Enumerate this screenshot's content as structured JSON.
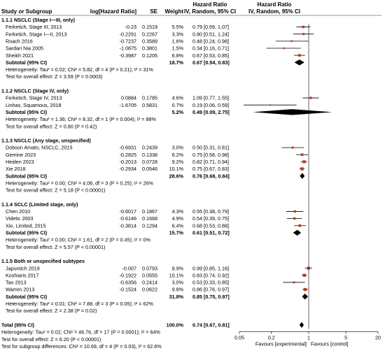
{
  "header": {
    "col_study": "Study or Subgroup",
    "col_loghr": "log[Hazard Ratio]",
    "col_se": "SE",
    "col_weight": "Weight",
    "col_hr1": "Hazard Ratio",
    "col_hr2": "IV, Random, 95% CI",
    "plot_hr1": "Hazard Ratio",
    "plot_hr2": "IV, Random, 95% CI"
  },
  "colors": {
    "header_rule": "#7a9cc6",
    "study_box": "#c0392b",
    "ci_line": "#000000",
    "diamond": "#000000",
    "text": "#000000"
  },
  "chart_data": {
    "type": "forest",
    "scale": "log",
    "xlim": [
      0.05,
      20
    ],
    "ticks": [
      {
        "value": 0.05,
        "label": "0.05"
      },
      {
        "value": 0.2,
        "label": "0.2"
      },
      {
        "value": 1,
        "label": "1"
      },
      {
        "value": 5,
        "label": "5"
      },
      {
        "value": 20,
        "label": "20"
      }
    ],
    "favours_left": "Favours [experimental]",
    "favours_right": "Favours [control]",
    "subgroups": [
      {
        "title": "1.1.1 NSCLC (Stage I—III, only)",
        "studies": [
          {
            "name": "Ferketich, Stage III, 2013",
            "loghr": "-0.23",
            "se": "0.1519",
            "weight": "5.5%",
            "ci_text": "0.79 [0.59, 1.07]",
            "hr": 0.79,
            "lo": 0.59,
            "hi": 1.07,
            "w": 5.5
          },
          {
            "name": "Ferketich, Stage I—II, 2013",
            "loghr": "-0.2291",
            "se": "0.2267",
            "weight": "3.3%",
            "ci_text": "0.80 [0.51, 1.24]",
            "hr": 0.8,
            "lo": 0.51,
            "hi": 1.24,
            "w": 3.3
          },
          {
            "name": "Roach 2016",
            "loghr": "-0.7237",
            "se": "0.3589",
            "weight": "1.6%",
            "ci_text": "0.48 [0.24, 0.98]",
            "hr": 0.48,
            "lo": 0.24,
            "hi": 0.98,
            "w": 1.6
          },
          {
            "name": "Sardari Nia 2005",
            "loghr": "-1.0875",
            "se": "0.3801",
            "weight": "1.5%",
            "ci_text": "0.34 [0.16, 0.71]",
            "hr": 0.34,
            "lo": 0.16,
            "hi": 0.71,
            "w": 1.5
          },
          {
            "name": "Sheikh 2021",
            "loghr": "-0.3987",
            "se": "0.1205",
            "weight": "6.8%",
            "ci_text": "0.67 [0.53, 0.85]",
            "hr": 0.67,
            "lo": 0.53,
            "hi": 0.85,
            "w": 6.8
          }
        ],
        "subtotal": {
          "label": "Subtotal (95% CI)",
          "weight": "18.7%",
          "ci_text": "0.67 [0.54, 0.83]",
          "hr": 0.67,
          "lo": 0.54,
          "hi": 0.83
        },
        "heterogeneity": "Heterogeneity: Tau² = 0.02; Chi² = 5.82, df = 4 (P = 0.21); I² = 31%",
        "overall_effect": "Test for overall effect: Z = 3.59 (P = 0.0003)"
      },
      {
        "title": "1.1.2 NSCLC (Stage IV, only)",
        "studies": [
          {
            "name": "Ferketich, Stage IV, 2013",
            "loghr": "0.0884",
            "se": "0.1785",
            "weight": "4.6%",
            "ci_text": "1.09 [0.77, 1.55]",
            "hr": 1.09,
            "lo": 0.77,
            "hi": 1.55,
            "w": 4.6
          },
          {
            "name": "Linhas, Squamous, 2018",
            "loghr": "-1.6705",
            "se": "0.5831",
            "weight": "0.7%",
            "ci_text": "0.19 [0.06, 0.59]",
            "hr": 0.19,
            "lo": 0.06,
            "hi": 0.59,
            "w": 0.7
          }
        ],
        "subtotal": {
          "label": "Subtotal (95% CI)",
          "weight": "5.2%",
          "ci_text": "0.49 [0.09, 2.75]",
          "hr": 0.49,
          "lo": 0.09,
          "hi": 2.75
        },
        "heterogeneity": "Heterogeneity: Tau² = 1.36; Chi² = 8.32, df = 1 (P = 0.004); I² = 88%",
        "overall_effect": "Test for overall effect: Z = 0.80 (P = 0.42)"
      },
      {
        "title": "1.1.3 NSCLC (Any stage, unspecified)",
        "studies": [
          {
            "name": "Dobson Amato, NSCLC, 2015",
            "loghr": "-0.6931",
            "se": "0.2439",
            "weight": "3.0%",
            "ci_text": "0.50 [0.31, 0.81]",
            "hr": 0.5,
            "lo": 0.31,
            "hi": 0.81,
            "w": 3.0
          },
          {
            "name": "Gemine 2023",
            "loghr": "-0.2825",
            "se": "0.1338",
            "weight": "6.2%",
            "ci_text": "0.75 [0.58, 0.98]",
            "hr": 0.75,
            "lo": 0.58,
            "hi": 0.98,
            "w": 6.2
          },
          {
            "name": "Heiden 2023",
            "loghr": "-0.2013",
            "se": "0.0728",
            "weight": "9.2%",
            "ci_text": "0.82 [0.71, 0.94]",
            "hr": 0.82,
            "lo": 0.71,
            "hi": 0.94,
            "w": 9.2
          },
          {
            "name": "Xie 2018",
            "loghr": "-0.2934",
            "se": "0.0546",
            "weight": "10.1%",
            "ci_text": "0.75 [0.67, 0.83]",
            "hr": 0.75,
            "lo": 0.67,
            "hi": 0.83,
            "w": 10.1
          }
        ],
        "subtotal": {
          "label": "Subtotal (95% CI)",
          "weight": "28.6%",
          "ci_text": "0.76 [0.68, 0.84]",
          "hr": 0.76,
          "lo": 0.68,
          "hi": 0.84
        },
        "heterogeneity": "Heterogeneity: Tau² = 0.00; Chi² = 4.08, df = 3 (P = 0.25); I² = 26%",
        "overall_effect": "Test for overall effect: Z = 5.18 (P < 0.00001)"
      },
      {
        "title": "1.1.4 SCLC (Limited stage, only)",
        "studies": [
          {
            "name": "Chen 2010",
            "loghr": "-0.6017",
            "se": "0.1867",
            "weight": "4.3%",
            "ci_text": "0.55 [0.38, 0.79]",
            "hr": 0.55,
            "lo": 0.38,
            "hi": 0.79,
            "w": 4.3
          },
          {
            "name": "Videtic 2003",
            "loghr": "-0.6146",
            "se": "0.1668",
            "weight": "4.9%",
            "ci_text": "0.54 [0.39, 0.75]",
            "hr": 0.54,
            "lo": 0.39,
            "hi": 0.75,
            "w": 4.9
          },
          {
            "name": "Xie, Limited, 2015",
            "loghr": "-0.3814",
            "se": "0.1294",
            "weight": "6.4%",
            "ci_text": "0.68 [0.53, 0.88]",
            "hr": 0.68,
            "lo": 0.53,
            "hi": 0.88,
            "w": 6.4
          }
        ],
        "subtotal": {
          "label": "Subtotal (95% CI)",
          "weight": "15.7%",
          "ci_text": "0.61 [0.51, 0.72]",
          "hr": 0.61,
          "lo": 0.51,
          "hi": 0.72
        },
        "heterogeneity": "Heterogeneity: Tau² = 0.00; Chi² = 1.61, df = 2 (P = 0.45); I² = 0%",
        "overall_effect": "Test for overall effect: Z = 5.57 (P < 0.00001)"
      },
      {
        "title": "1.1.5 Both or unspecified subtypes",
        "studies": [
          {
            "name": "Japuntich 2019",
            "loghr": "-0.007",
            "se": "0.0793",
            "weight": "8.9%",
            "ci_text": "0.99 [0.85, 1.16]",
            "hr": 0.99,
            "lo": 0.85,
            "hi": 1.16,
            "w": 8.9
          },
          {
            "name": "Koshiaris 2017",
            "loghr": "-0.1922",
            "se": "0.0555",
            "weight": "10.1%",
            "ci_text": "0.83 [0.74, 0.92]",
            "hr": 0.83,
            "lo": 0.74,
            "hi": 0.92,
            "w": 10.1
          },
          {
            "name": "Tao 2013",
            "loghr": "-0.6356",
            "se": "0.2414",
            "weight": "3.0%",
            "ci_text": "0.53 [0.33, 0.85]",
            "hr": 0.53,
            "lo": 0.33,
            "hi": 0.85,
            "w": 3.0
          },
          {
            "name": "Warren 2013",
            "loghr": "-0.1524",
            "se": "0.0622",
            "weight": "9.8%",
            "ci_text": "0.86 [0.76, 0.97]",
            "hr": 0.86,
            "lo": 0.76,
            "hi": 0.97,
            "w": 9.8
          }
        ],
        "subtotal": {
          "label": "Subtotal (95% CI)",
          "weight": "31.8%",
          "ci_text": "0.85 [0.75, 0.97]",
          "hr": 0.85,
          "lo": 0.75,
          "hi": 0.97
        },
        "heterogeneity": "Heterogeneity: Tau² = 0.01; Chi² = 7.88, df = 3 (P = 0.05); I² = 62%",
        "overall_effect": "Test for overall effect: Z = 2.38 (P = 0.02)"
      }
    ],
    "total": {
      "label": "Total (95% CI)",
      "weight": "100.0%",
      "ci_text": "0.74 [0.67, 0.81]",
      "hr": 0.74,
      "lo": 0.67,
      "hi": 0.81
    },
    "total_heterogeneity": "Heterogeneity: Tau² = 0.02; Chi² = 46.76, df = 17 (P = 0.0001); I² = 64%",
    "total_overall_effect": "Test for overall effect: Z = 6.20 (P < 0.00001)",
    "subgroup_differences": "Test for subgroup differences: Chi² = 10.69, df = 4 (P = 0.03), I² = 62.6%"
  }
}
